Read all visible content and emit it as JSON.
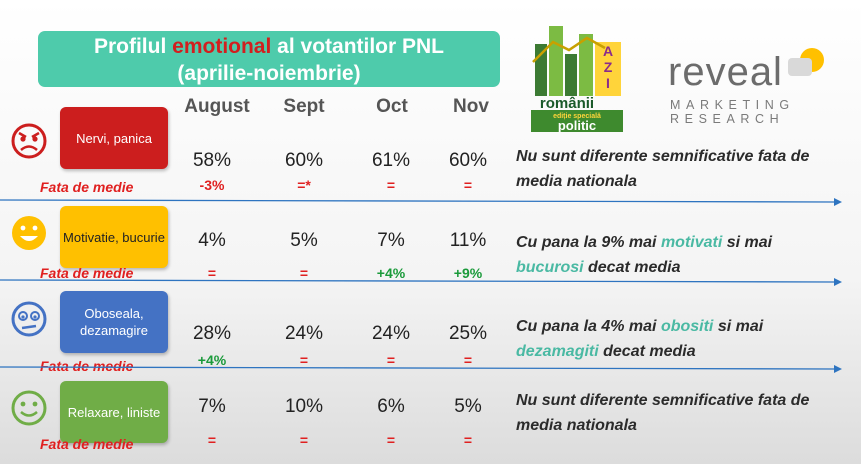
{
  "title": {
    "pre": "Profilul ",
    "highlight": "emotional",
    "post": " al votantilor PNL",
    "line2": "(aprilie-noiembrie)"
  },
  "colors": {
    "teal": "#4ecbab",
    "red": "#e02020",
    "green": "#1a9a3a",
    "blue_arrow": "#2e74c0"
  },
  "logo_romanii": {
    "word": "românii",
    "azi": "AZI",
    "ed": "ediție specială",
    "politic": "politic"
  },
  "logo_reveal": {
    "word": "reveal",
    "line1": "MARKETING",
    "line2": "RESEARCH"
  },
  "chart_data": {
    "type": "table",
    "columns": [
      "August",
      "Sept",
      "Oct",
      "Nov"
    ],
    "rows": [
      {
        "emotion": "Nervi, panica",
        "face": "angry-face-icon",
        "color": "#cc1e1e",
        "values": [
          "58%",
          "60%",
          "61%",
          "60%"
        ],
        "baseline_label": "Fata de medie",
        "diffs": [
          "-3%",
          "=*",
          "=",
          "="
        ],
        "diff_colors": [
          "#e02020",
          "#e02020",
          "#e02020",
          "#e02020"
        ],
        "note": [
          {
            "t": "Nu sunt diferente semnificative fata de media nationala"
          }
        ]
      },
      {
        "emotion": "Motivatie, bucurie",
        "face": "happy-face-icon",
        "color": "#ffc000",
        "values": [
          "4%",
          "5%",
          "7%",
          "11%"
        ],
        "baseline_label": "Fata de medie",
        "diffs": [
          "=",
          "=",
          "+4%",
          "+9%"
        ],
        "diff_colors": [
          "#e02020",
          "#e02020",
          "#1a9a3a",
          "#1a9a3a"
        ],
        "note": [
          {
            "t": "Cu pana la 9% mai "
          },
          {
            "t": "motivati",
            "hl": true
          },
          {
            "t": " si mai "
          },
          {
            "t": "bucurosi",
            "hl": true
          },
          {
            "t": " decat media"
          }
        ]
      },
      {
        "emotion": "Oboseala, dezamagire",
        "face": "tired-face-icon",
        "color": "#4472c4",
        "values": [
          "28%",
          "24%",
          "24%",
          "25%"
        ],
        "baseline_label": "Fata de medie",
        "diffs": [
          "+4%",
          "=",
          "=",
          "="
        ],
        "diff_colors": [
          "#1a9a3a",
          "#e02020",
          "#e02020",
          "#e02020"
        ],
        "note": [
          {
            "t": "Cu pana la 4% mai "
          },
          {
            "t": "obositi",
            "hl": true
          },
          {
            "t": " si mai "
          },
          {
            "t": "dezamagiti",
            "hl": true
          },
          {
            "t": " decat media"
          }
        ]
      },
      {
        "emotion": "Relaxare, liniste",
        "face": "calm-face-icon",
        "color": "#70ad47",
        "values": [
          "7%",
          "10%",
          "6%",
          "5%"
        ],
        "baseline_label": "Fata de medie",
        "diffs": [
          "=",
          "=",
          "=",
          "="
        ],
        "diff_colors": [
          "#e02020",
          "#e02020",
          "#e02020",
          "#e02020"
        ],
        "note": [
          {
            "t": "Nu sunt diferente semnificative fata de media nationala"
          }
        ]
      }
    ]
  }
}
